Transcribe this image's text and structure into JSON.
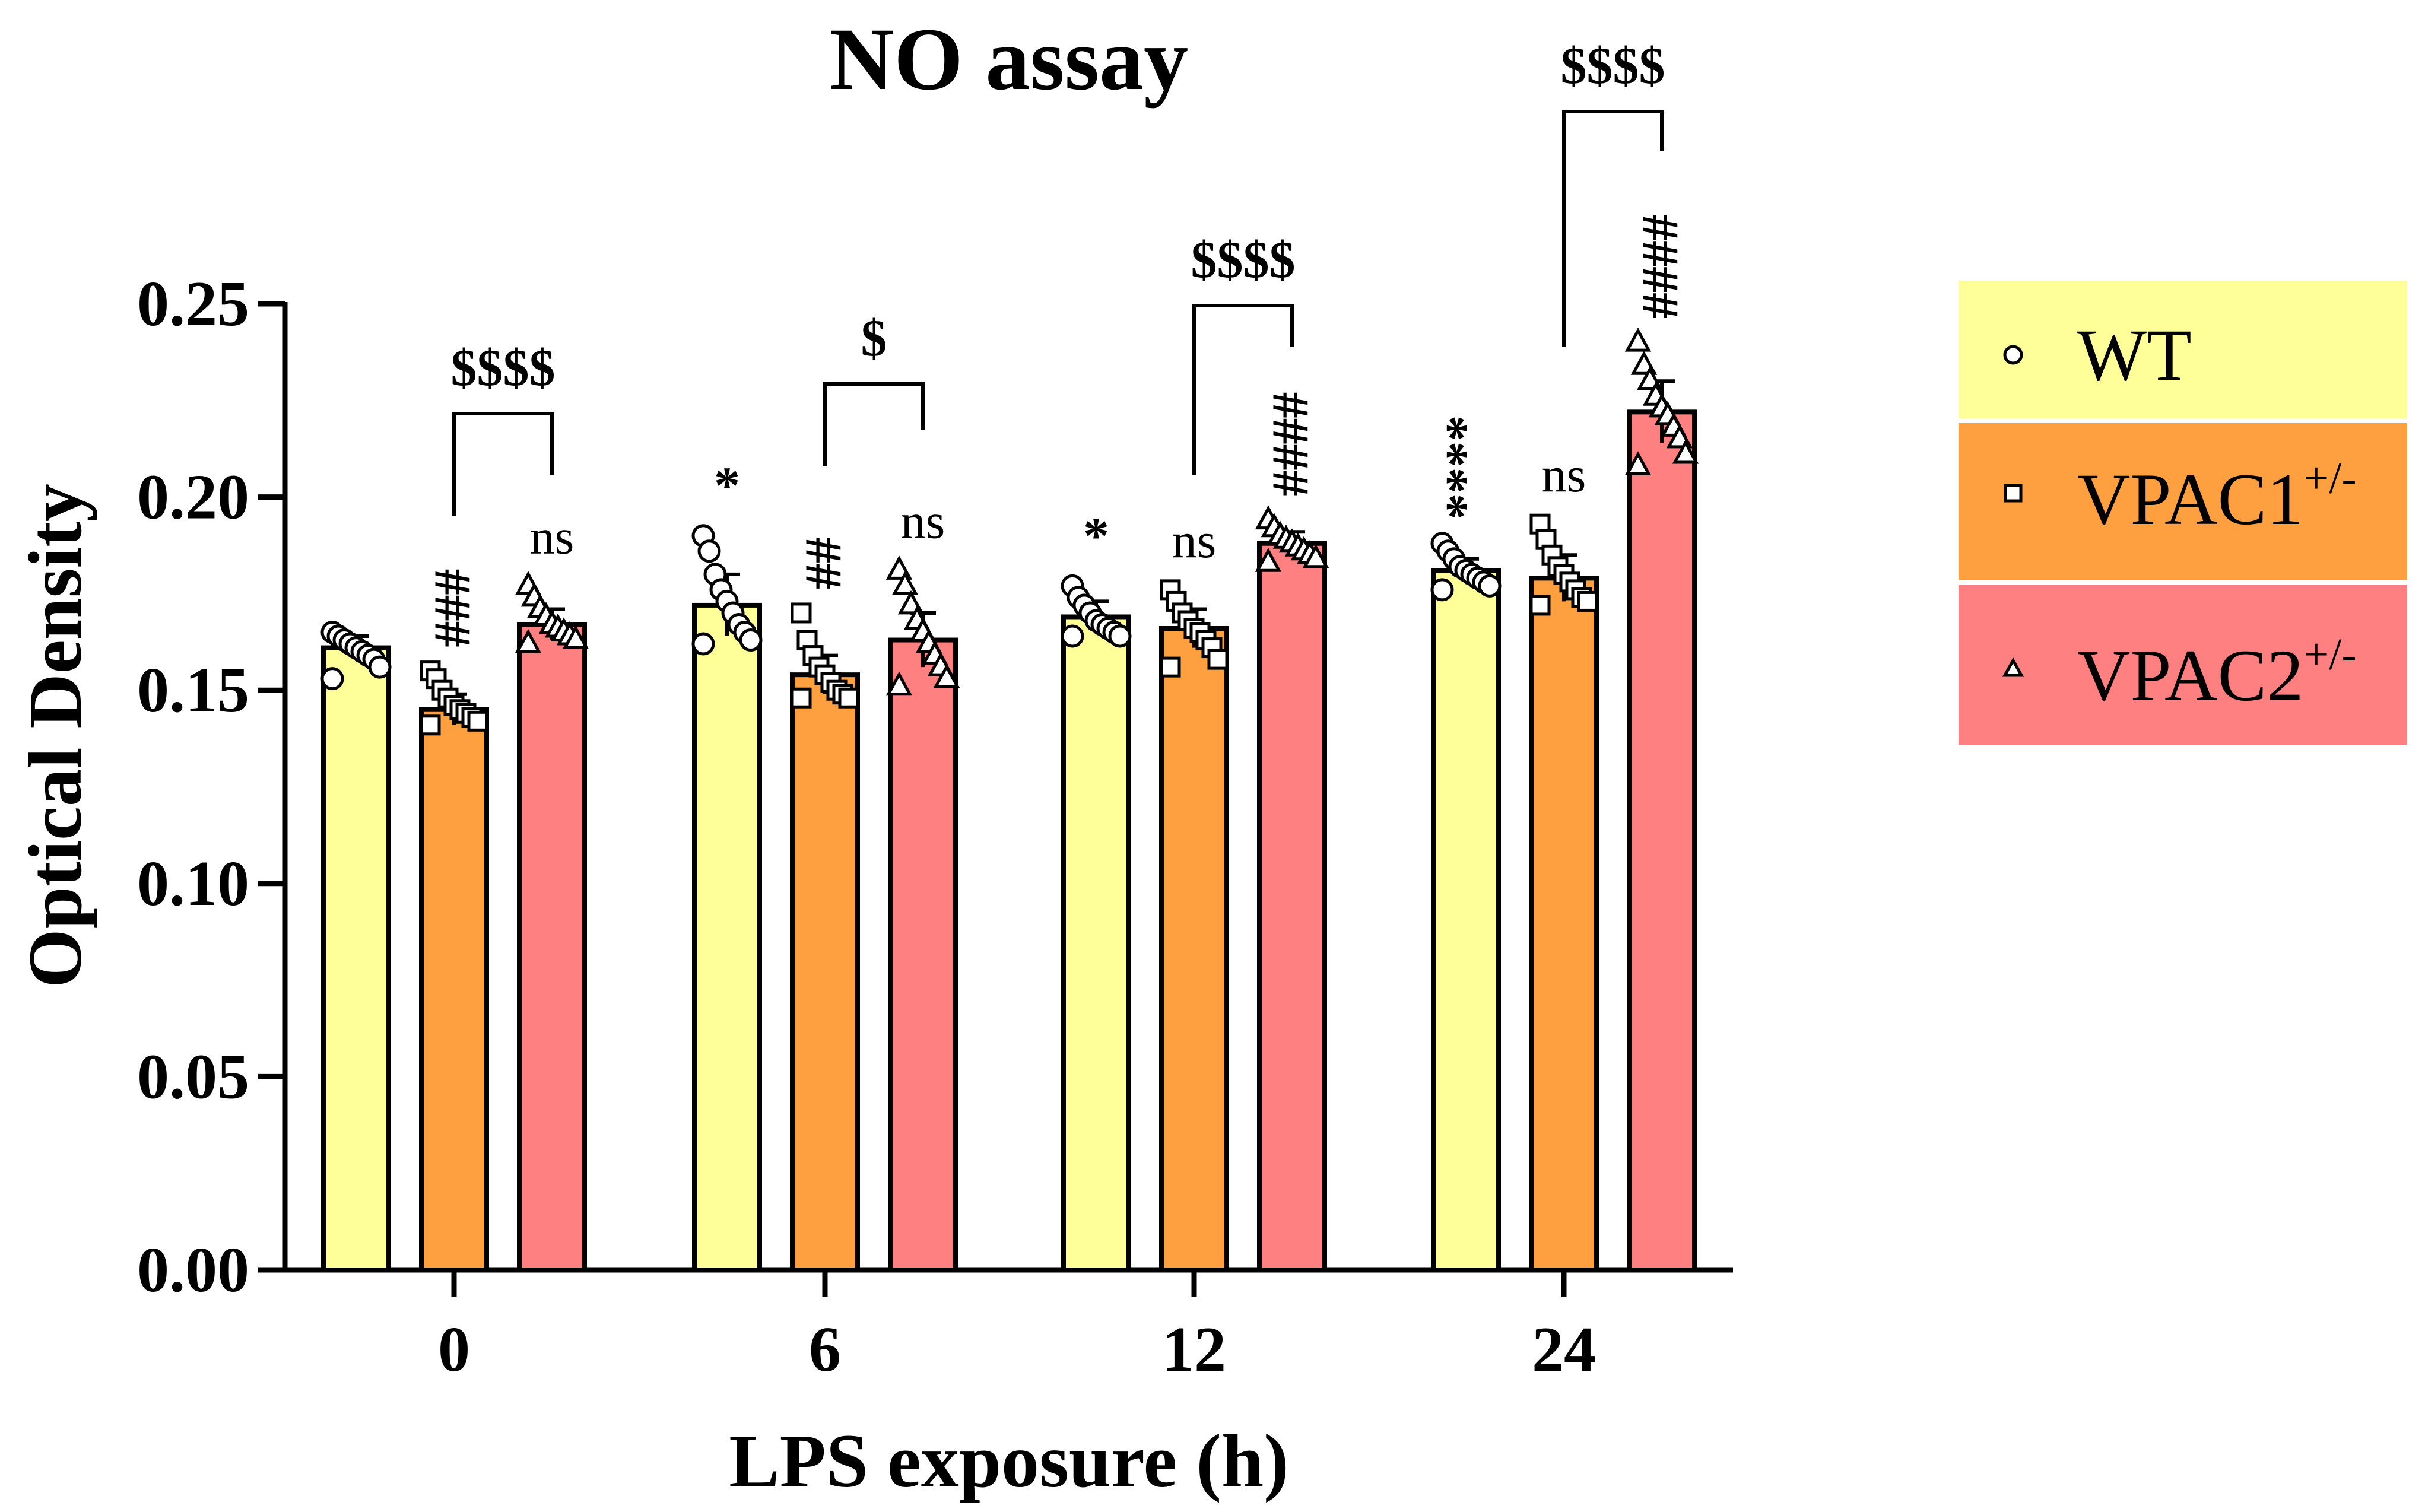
{
  "chart_data": {
    "type": "bar",
    "title": "NO assay",
    "xlabel": "LPS exposure (h)",
    "ylabel": "Optical Density",
    "ylim": [
      0,
      0.25
    ],
    "yticks": [
      "0.00",
      "0.05",
      "0.10",
      "0.15",
      "0.20",
      "0.25"
    ],
    "categories": [
      "0",
      "6",
      "12",
      "24"
    ],
    "colors": {
      "WT": "#ffff99",
      "VPAC1": "#ffa040",
      "VPAC2": "#ff8080",
      "bar_stroke": "#000000"
    },
    "series": [
      {
        "name": "WT",
        "legend_label": "WT",
        "superscript": "",
        "marker": "circle",
        "values": [
          0.161,
          0.172,
          0.169,
          0.181
        ],
        "sd": [
          0.003,
          0.008,
          0.004,
          0.003
        ],
        "points": [
          [
            0.165,
            0.164,
            0.163,
            0.162,
            0.161,
            0.16,
            0.159,
            0.158,
            0.156,
            0.153
          ],
          [
            0.19,
            0.186,
            0.18,
            0.176,
            0.173,
            0.17,
            0.167,
            0.165,
            0.163,
            0.162
          ],
          [
            0.177,
            0.174,
            0.172,
            0.17,
            0.168,
            0.167,
            0.166,
            0.165,
            0.164,
            0.164
          ],
          [
            0.188,
            0.186,
            0.184,
            0.182,
            0.181,
            0.18,
            0.179,
            0.178,
            0.177,
            0.176
          ]
        ]
      },
      {
        "name": "VPAC1",
        "legend_label": "VPAC1",
        "superscript": "+/-",
        "marker": "square",
        "values": [
          0.145,
          0.154,
          0.166,
          0.179
        ],
        "sd": [
          0.004,
          0.005,
          0.005,
          0.006
        ],
        "points": [
          [
            0.155,
            0.153,
            0.15,
            0.148,
            0.146,
            0.145,
            0.144,
            0.143,
            0.142,
            0.141
          ],
          [
            0.17,
            0.163,
            0.159,
            0.156,
            0.154,
            0.152,
            0.15,
            0.149,
            0.148,
            0.148
          ],
          [
            0.176,
            0.173,
            0.17,
            0.168,
            0.166,
            0.165,
            0.163,
            0.161,
            0.158,
            0.156
          ],
          [
            0.193,
            0.189,
            0.185,
            0.182,
            0.18,
            0.178,
            0.176,
            0.174,
            0.173,
            0.172
          ]
        ]
      },
      {
        "name": "VPAC2",
        "legend_label": "VPAC2",
        "superscript": "+/-",
        "marker": "triangle",
        "values": [
          0.167,
          0.163,
          0.188,
          0.222
        ],
        "sd": [
          0.004,
          0.007,
          0.003,
          0.008
        ],
        "points": [
          [
            0.177,
            0.174,
            0.171,
            0.169,
            0.167,
            0.166,
            0.165,
            0.164,
            0.163,
            0.162
          ],
          [
            0.181,
            0.177,
            0.172,
            0.168,
            0.165,
            0.162,
            0.159,
            0.156,
            0.153,
            0.151
          ],
          [
            0.194,
            0.192,
            0.19,
            0.189,
            0.188,
            0.187,
            0.186,
            0.185,
            0.184,
            0.183
          ],
          [
            0.24,
            0.234,
            0.23,
            0.226,
            0.223,
            0.221,
            0.218,
            0.215,
            0.211,
            0.208
          ]
        ]
      }
    ],
    "annotations": {
      "vertical": [
        {
          "cat": 0,
          "series": 1,
          "text": "###"
        },
        {
          "cat": 1,
          "series": 1,
          "text": "##"
        },
        {
          "cat": 2,
          "series": 2,
          "text": "####"
        },
        {
          "cat": 3,
          "series": 0,
          "text": "****"
        },
        {
          "cat": 3,
          "series": 2,
          "text": "####"
        }
      ],
      "horizontal": [
        {
          "cat": 0,
          "series": 2,
          "text": "ns"
        },
        {
          "cat": 1,
          "series": 0,
          "text": "*"
        },
        {
          "cat": 1,
          "series": 2,
          "text": "ns"
        },
        {
          "cat": 2,
          "series": 0,
          "text": "*"
        },
        {
          "cat": 2,
          "series": 1,
          "text": "ns"
        },
        {
          "cat": 3,
          "series": 1,
          "text": "ns"
        }
      ],
      "brackets": [
        {
          "cat": 0,
          "from": 1,
          "to": 2,
          "text": "$$$$"
        },
        {
          "cat": 1,
          "from": 1,
          "to": 2,
          "text": "$"
        },
        {
          "cat": 2,
          "from": 1,
          "to": 2,
          "text": "$$$$"
        },
        {
          "cat": 3,
          "from": 1,
          "to": 2,
          "text": "$$$$"
        }
      ]
    }
  }
}
